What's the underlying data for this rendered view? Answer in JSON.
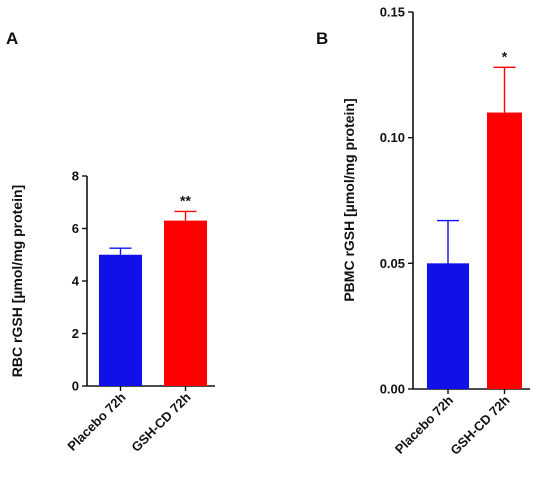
{
  "chart_data": [
    {
      "type": "bar",
      "panel": "A",
      "categories": [
        "Placebo 72h",
        "GSH-CD 72h"
      ],
      "values": [
        5.0,
        6.3
      ],
      "errors": [
        0.25,
        0.35
      ],
      "colors": [
        "#1010e8",
        "#ff0000"
      ],
      "significance": [
        "",
        "**"
      ],
      "ylabel": "RBC rGSH [µmol/mg protein]",
      "xlabel": "",
      "title": "",
      "ylim": [
        0,
        8
      ],
      "yticks": [
        0,
        2,
        4,
        6,
        8
      ],
      "ytick_labels": [
        "0",
        "2",
        "4",
        "6",
        "8"
      ],
      "grid": false
    },
    {
      "type": "bar",
      "panel": "B",
      "categories": [
        "Placebo 72h",
        "GSH-CD 72h"
      ],
      "values": [
        0.05,
        0.11
      ],
      "errors": [
        0.017,
        0.018
      ],
      "colors": [
        "#1010e8",
        "#ff0000"
      ],
      "significance": [
        "",
        "*"
      ],
      "ylabel": "PBMC rGSH [µmol/mg protein]",
      "xlabel": "",
      "title": "",
      "ylim": [
        0,
        0.15
      ],
      "yticks": [
        0,
        0.05,
        0.1,
        0.15
      ],
      "ytick_labels": [
        "0.00",
        "0.05",
        "0.10",
        "0.15"
      ],
      "grid": false
    }
  ]
}
